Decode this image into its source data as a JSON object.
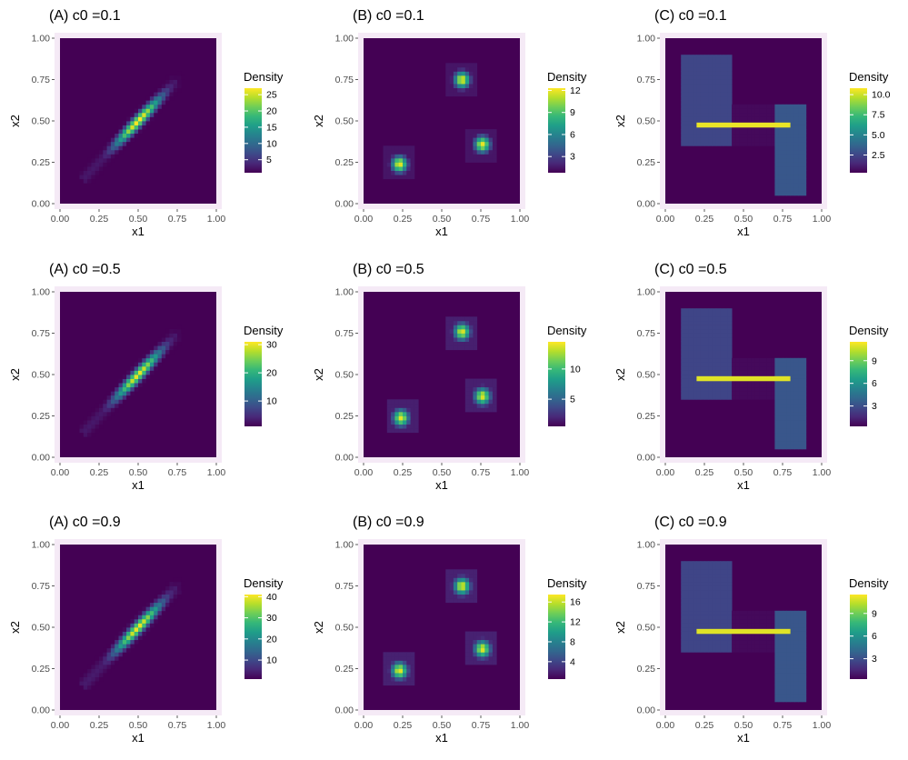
{
  "chart_data": [
    {
      "type": "heatmap",
      "title": "(A) c0 =0.1",
      "xlabel": "x1",
      "ylabel": "x2",
      "xlim": [
        0,
        1
      ],
      "ylim": [
        0,
        1
      ],
      "x_ticks": [
        "0.00",
        "0.25",
        "0.50",
        "0.75",
        "1.00"
      ],
      "y_ticks": [
        "0.00",
        "0.25",
        "0.50",
        "0.75",
        "1.00"
      ],
      "legend": {
        "title": "Density",
        "min": 1,
        "max": 27,
        "breaks": [
          5,
          10,
          15,
          20,
          25
        ],
        "labels": [
          "5",
          "10",
          "15",
          "20",
          "25"
        ]
      },
      "pattern": "diagonal",
      "peak": 27
    },
    {
      "type": "heatmap",
      "title": "(B) c0 =0.1",
      "xlabel": "x1",
      "ylabel": "x2",
      "xlim": [
        0,
        1
      ],
      "ylim": [
        0,
        1
      ],
      "x_ticks": [
        "0.00",
        "0.25",
        "0.50",
        "0.75",
        "1.00"
      ],
      "y_ticks": [
        "0.00",
        "0.25",
        "0.50",
        "0.75",
        "1.00"
      ],
      "legend": {
        "title": "Density",
        "min": 0.8,
        "max": 12.3,
        "breaks": [
          3,
          6,
          9,
          12
        ],
        "labels": [
          "3",
          "6",
          "9",
          "12"
        ]
      },
      "pattern": "three_clusters",
      "cluster_centers": [
        [
          0.23,
          0.24
        ],
        [
          0.63,
          0.75
        ],
        [
          0.76,
          0.36
        ]
      ],
      "peak": 12
    },
    {
      "type": "heatmap",
      "title": "(C) c0 =0.1",
      "xlabel": "x1",
      "ylabel": "x2",
      "xlim": [
        0,
        1
      ],
      "ylim": [
        0,
        1
      ],
      "x_ticks": [
        "0.00",
        "0.25",
        "0.50",
        "0.75",
        "1.00"
      ],
      "y_ticks": [
        "0.00",
        "0.25",
        "0.50",
        "0.75",
        "1.00"
      ],
      "legend": {
        "title": "Density",
        "min": 0.3,
        "max": 10.8,
        "breaks": [
          2.5,
          5.0,
          7.5,
          10.0
        ],
        "labels": [
          "2.5",
          "5.0",
          "7.5",
          "10.0"
        ]
      },
      "pattern": "h_shape",
      "peak": 10.5
    },
    {
      "type": "heatmap",
      "title": "(A) c0 =0.5",
      "xlabel": "x1",
      "ylabel": "x2",
      "xlim": [
        0,
        1
      ],
      "ylim": [
        0,
        1
      ],
      "x_ticks": [
        "0.00",
        "0.25",
        "0.50",
        "0.75",
        "1.00"
      ],
      "y_ticks": [
        "0.00",
        "0.25",
        "0.50",
        "0.75",
        "1.00"
      ],
      "legend": {
        "title": "Density",
        "min": 1,
        "max": 31,
        "breaks": [
          10,
          20,
          30
        ],
        "labels": [
          "10",
          "20",
          "30"
        ]
      },
      "pattern": "diagonal",
      "peak": 30
    },
    {
      "type": "heatmap",
      "title": "(B) c0 =0.5",
      "xlabel": "x1",
      "ylabel": "x2",
      "xlim": [
        0,
        1
      ],
      "ylim": [
        0,
        1
      ],
      "x_ticks": [
        "0.00",
        "0.25",
        "0.50",
        "0.75",
        "1.00"
      ],
      "y_ticks": [
        "0.00",
        "0.25",
        "0.50",
        "0.75",
        "1.00"
      ],
      "legend": {
        "title": "Density",
        "min": 0.5,
        "max": 14.5,
        "breaks": [
          5,
          10
        ],
        "labels": [
          "5",
          "10"
        ]
      },
      "pattern": "three_clusters",
      "cluster_centers": [
        [
          0.24,
          0.24
        ],
        [
          0.63,
          0.76
        ],
        [
          0.76,
          0.37
        ]
      ],
      "peak": 14
    },
    {
      "type": "heatmap",
      "title": "(C) c0 =0.5",
      "xlabel": "x1",
      "ylabel": "x2",
      "xlim": [
        0,
        1
      ],
      "ylim": [
        0,
        1
      ],
      "x_ticks": [
        "0.00",
        "0.25",
        "0.50",
        "0.75",
        "1.00"
      ],
      "y_ticks": [
        "0.00",
        "0.25",
        "0.50",
        "0.75",
        "1.00"
      ],
      "legend": {
        "title": "Density",
        "min": 0.3,
        "max": 11.5,
        "breaks": [
          3,
          6,
          9
        ],
        "labels": [
          "3",
          "6",
          "9"
        ]
      },
      "pattern": "h_shape",
      "peak": 11
    },
    {
      "type": "heatmap",
      "title": "(A) c0 =0.9",
      "xlabel": "x1",
      "ylabel": "x2",
      "xlim": [
        0,
        1
      ],
      "ylim": [
        0,
        1
      ],
      "x_ticks": [
        "0.00",
        "0.25",
        "0.50",
        "0.75",
        "1.00"
      ],
      "y_ticks": [
        "0.00",
        "0.25",
        "0.50",
        "0.75",
        "1.00"
      ],
      "legend": {
        "title": "Density",
        "min": 1,
        "max": 41,
        "breaks": [
          10,
          20,
          30,
          40
        ],
        "labels": [
          "10",
          "20",
          "30",
          "40"
        ]
      },
      "pattern": "diagonal",
      "peak": 40
    },
    {
      "type": "heatmap",
      "title": "(B) c0 =0.9",
      "xlabel": "x1",
      "ylabel": "x2",
      "xlim": [
        0,
        1
      ],
      "ylim": [
        0,
        1
      ],
      "x_ticks": [
        "0.00",
        "0.25",
        "0.50",
        "0.75",
        "1.00"
      ],
      "y_ticks": [
        "0.00",
        "0.25",
        "0.50",
        "0.75",
        "1.00"
      ],
      "legend": {
        "title": "Density",
        "min": 0.5,
        "max": 17.5,
        "breaks": [
          4,
          8,
          12,
          16
        ],
        "labels": [
          "4",
          "8",
          "12",
          "16"
        ]
      },
      "pattern": "three_clusters",
      "cluster_centers": [
        [
          0.23,
          0.24
        ],
        [
          0.63,
          0.75
        ],
        [
          0.76,
          0.37
        ]
      ],
      "peak": 17
    },
    {
      "type": "heatmap",
      "title": "(C) c0 =0.9",
      "xlabel": "x1",
      "ylabel": "x2",
      "xlim": [
        0,
        1
      ],
      "ylim": [
        0,
        1
      ],
      "x_ticks": [
        "0.00",
        "0.25",
        "0.50",
        "0.75",
        "1.00"
      ],
      "y_ticks": [
        "0.00",
        "0.25",
        "0.50",
        "0.75",
        "1.00"
      ],
      "legend": {
        "title": "Density",
        "min": 0.3,
        "max": 11.5,
        "breaks": [
          3,
          6,
          9
        ],
        "labels": [
          "3",
          "6",
          "9"
        ]
      },
      "pattern": "h_shape",
      "peak": 11
    }
  ],
  "colors": {
    "viridis": [
      "#440154",
      "#482878",
      "#3e4989",
      "#31688e",
      "#26828e",
      "#1f9e89",
      "#35b779",
      "#6ece58",
      "#b5de2b",
      "#fde725"
    ],
    "panel_border": "#f5eaf6",
    "tick_text": "#4d4d4d"
  }
}
